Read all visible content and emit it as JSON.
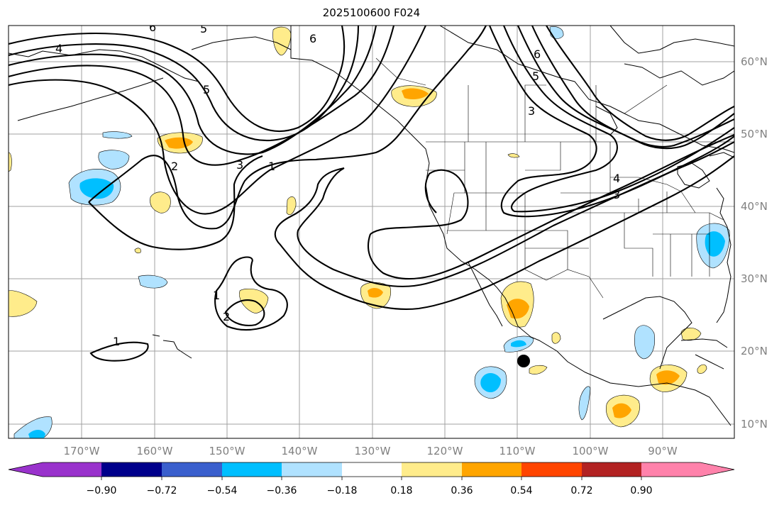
{
  "title": "2025100600 F024",
  "lat_labels": [
    "60°N",
    "50°N",
    "40°N",
    "30°N",
    "20°N",
    "10°N"
  ],
  "lon_labels": [
    "170°W",
    "160°W",
    "150°W",
    "140°W",
    "130°W",
    "120°W",
    "110°W",
    "100°W",
    "90°W"
  ],
  "contour_labels": [
    "6",
    "5",
    "4",
    "5",
    "6",
    "3",
    "2",
    "3",
    "1",
    "1",
    "2",
    "1",
    "4",
    "5",
    "6",
    "3"
  ],
  "colorbar": {
    "ticks": [
      "−0.90",
      "−0.72",
      "−0.54",
      "−0.36",
      "−0.18",
      "0.18",
      "0.36",
      "0.54",
      "0.72",
      "0.90"
    ],
    "colors": [
      "#9932cc",
      "#00008b",
      "#3a5fcd",
      "#00bfff",
      "#b0e2ff",
      "#ffffff",
      "#ffec8b",
      "#ffa500",
      "#ff4500",
      "#b22222",
      "#ff82ab"
    ]
  },
  "shading_colors": {
    "light_blue": "#b0e2ff",
    "blue": "#00bfff",
    "light_yellow": "#ffec8b",
    "orange": "#ffa500"
  },
  "marker": "storm-center-dot"
}
